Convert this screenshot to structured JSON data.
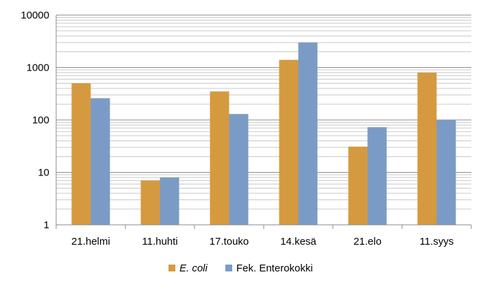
{
  "chart_data": {
    "type": "bar",
    "title": "",
    "xlabel": "",
    "ylabel": "",
    "yscale": "log",
    "ylim": [
      1,
      10000
    ],
    "yticks": [
      "1",
      "10",
      "100",
      "1000",
      "10000"
    ],
    "grid": true,
    "legend_position": "bottom",
    "categories": [
      "21.helmi",
      "11.huhti",
      "17.touko",
      "14.kesä",
      "21.elo",
      "11.syys"
    ],
    "series": [
      {
        "name": "E. coli",
        "color": "#D59A3F",
        "values": [
          500,
          7,
          350,
          1400,
          31,
          800
        ]
      },
      {
        "name": "Fek. Enterokokki",
        "color": "#7B9BC7",
        "values": [
          260,
          8,
          130,
          3000,
          73,
          100
        ]
      }
    ]
  }
}
